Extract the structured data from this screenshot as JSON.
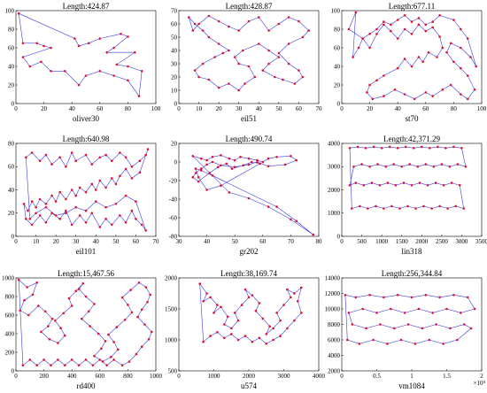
{
  "colors": {
    "tour": "#3a3ae0",
    "city": "#e01030",
    "axis": "#000000"
  },
  "chart_data": [
    {
      "type": "scatter",
      "name": "oliver30",
      "title": "Length:424.87",
      "xlim": [
        0,
        100
      ],
      "ylim": [
        0,
        100
      ],
      "xticks": [
        "0",
        "20",
        "40",
        "60",
        "80",
        "100"
      ],
      "yticks": [
        "0",
        "20",
        "40",
        "60",
        "80",
        "100"
      ],
      "x": [
        2,
        42,
        45,
        52,
        60,
        75,
        80,
        70,
        65,
        85,
        72,
        80,
        90,
        88,
        80,
        70,
        60,
        50,
        45,
        35,
        25,
        18,
        10,
        5,
        25,
        20,
        15,
        5
      ],
      "y": [
        97,
        70,
        62,
        65,
        70,
        75,
        72,
        60,
        55,
        55,
        42,
        40,
        35,
        8,
        25,
        30,
        35,
        30,
        20,
        35,
        35,
        45,
        40,
        50,
        60,
        62,
        65,
        65
      ],
      "n_points": 30
    },
    {
      "type": "scatter",
      "name": "eil51",
      "title": "Length:428.87",
      "xlim": [
        0,
        70
      ],
      "ylim": [
        0,
        70
      ],
      "xticks": [
        "0",
        "10",
        "20",
        "30",
        "40",
        "50",
        "60",
        "70"
      ],
      "yticks": [
        "0",
        "10",
        "20",
        "30",
        "40",
        "50",
        "60",
        "70"
      ],
      "x": [
        5,
        8,
        12,
        15,
        20,
        25,
        22,
        18,
        12,
        8,
        10,
        15,
        20,
        25,
        30,
        33,
        38,
        35,
        30,
        28,
        32,
        40,
        45,
        50,
        45,
        42,
        48,
        52,
        58,
        62,
        60,
        55,
        50,
        55,
        62,
        65,
        60,
        55,
        50,
        45,
        40,
        35,
        30,
        25,
        20,
        15,
        10,
        7
      ],
      "y": [
        65,
        60,
        55,
        50,
        45,
        40,
        38,
        35,
        30,
        25,
        20,
        18,
        12,
        15,
        10,
        15,
        20,
        28,
        30,
        35,
        40,
        45,
        40,
        35,
        30,
        25,
        20,
        18,
        15,
        20,
        25,
        30,
        38,
        45,
        50,
        55,
        62,
        65,
        60,
        55,
        65,
        62,
        55,
        58,
        62,
        66,
        60,
        55
      ],
      "n_points": 51
    },
    {
      "type": "scatter",
      "name": "st70",
      "title": "Length:677.11",
      "xlim": [
        0,
        100
      ],
      "ylim": [
        0,
        100
      ],
      "xticks": [
        "0",
        "20",
        "40",
        "60",
        "80",
        "100"
      ],
      "yticks": [
        "0",
        "20",
        "40",
        "60",
        "80",
        "100"
      ],
      "x": [
        10,
        5,
        15,
        20,
        25,
        30,
        35,
        40,
        45,
        50,
        55,
        60,
        65,
        70,
        72,
        68,
        62,
        58,
        55,
        50,
        45,
        40,
        30,
        25,
        20,
        18,
        22,
        30,
        38,
        45,
        52,
        60,
        65,
        72,
        78,
        85,
        90,
        95,
        90,
        85,
        80,
        75,
        78,
        85,
        92,
        96,
        90,
        85,
        80,
        70,
        65,
        60,
        55,
        50,
        45,
        40,
        35,
        30,
        25,
        20,
        15,
        12,
        8
      ],
      "y": [
        98,
        80,
        70,
        60,
        75,
        85,
        78,
        70,
        80,
        75,
        85,
        78,
        82,
        72,
        60,
        50,
        55,
        45,
        50,
        40,
        48,
        38,
        30,
        25,
        20,
        12,
        5,
        8,
        15,
        10,
        5,
        12,
        8,
        15,
        20,
        10,
        5,
        15,
        30,
        38,
        45,
        55,
        65,
        60,
        50,
        40,
        70,
        80,
        90,
        95,
        88,
        85,
        92,
        88,
        95,
        90,
        85,
        88,
        80,
        75,
        70,
        60,
        50
      ],
      "n_points": 70
    },
    {
      "type": "scatter",
      "name": "eil101",
      "title": "Length:640.98",
      "xlim": [
        0,
        70
      ],
      "ylim": [
        0,
        80
      ],
      "xticks": [
        "0",
        "10",
        "20",
        "30",
        "40",
        "50",
        "60",
        "70"
      ],
      "yticks": [
        "0",
        "20",
        "40",
        "60",
        "80"
      ],
      "x": [
        5,
        8,
        12,
        15,
        18,
        22,
        25,
        28,
        30,
        35,
        38,
        42,
        45,
        48,
        52,
        55,
        58,
        62,
        65,
        66,
        62,
        58,
        55,
        52,
        50,
        48,
        45,
        42,
        40,
        38,
        35,
        32,
        30,
        28,
        25,
        22,
        20,
        18,
        15,
        12,
        10,
        8,
        6,
        4,
        5,
        8,
        12,
        15,
        18,
        22,
        25,
        28,
        32,
        35,
        38,
        42,
        45,
        48,
        52,
        55,
        58,
        60,
        63,
        65,
        60,
        55,
        50,
        45,
        40,
        35,
        30,
        25,
        20,
        15,
        10,
        7
      ],
      "y": [
        68,
        72,
        65,
        70,
        62,
        68,
        60,
        72,
        65,
        70,
        62,
        68,
        70,
        65,
        72,
        68,
        60,
        65,
        70,
        75,
        55,
        50,
        58,
        52,
        45,
        50,
        42,
        48,
        40,
        45,
        38,
        42,
        35,
        40,
        32,
        38,
        30,
        35,
        28,
        32,
        25,
        30,
        22,
        28,
        15,
        10,
        18,
        12,
        20,
        15,
        22,
        10,
        18,
        12,
        20,
        8,
        15,
        10,
        18,
        12,
        22,
        15,
        10,
        5,
        30,
        35,
        28,
        25,
        30,
        22,
        25,
        20,
        18,
        25,
        20,
        15
      ],
      "n_points": 101
    },
    {
      "type": "scatter",
      "name": "gr202",
      "title": "Length:490.74",
      "xlim": [
        30,
        80
      ],
      "ylim": [
        -80,
        30
      ],
      "xticks": [
        "30",
        "40",
        "50",
        "60",
        "70",
        "80"
      ],
      "yticks": [
        "-80",
        "-60",
        "-40",
        "-20",
        "0",
        "20"
      ],
      "x": [
        35,
        38,
        40,
        42,
        45,
        48,
        50,
        52,
        55,
        58,
        60,
        62,
        65,
        70,
        72,
        68,
        62,
        58,
        55,
        50,
        45,
        42,
        40,
        38,
        36,
        35,
        37,
        41,
        44,
        47,
        49,
        53,
        56,
        59,
        45,
        40,
        37,
        36,
        38,
        42,
        65,
        72,
        78,
        70,
        62,
        55,
        48
      ],
      "y": [
        15,
        12,
        10,
        14,
        16,
        12,
        10,
        14,
        12,
        10,
        8,
        12,
        14,
        15,
        10,
        5,
        3,
        8,
        5,
        2,
        4,
        8,
        5,
        0,
        -5,
        -10,
        -15,
        -5,
        2,
        6,
        0,
        4,
        8,
        6,
        -20,
        -25,
        -10,
        0,
        -2,
        -8,
        -45,
        -62,
        -78,
        -60,
        -45,
        -35,
        -28
      ],
      "n_points": 202
    },
    {
      "type": "scatter",
      "name": "lin318",
      "title": "Length:42,371.29",
      "xlim": [
        0,
        3500
      ],
      "ylim": [
        0,
        4000
      ],
      "xticks": [
        "0",
        "500",
        "1000",
        "1500",
        "2000",
        "2500",
        "3000",
        "3500"
      ],
      "yticks": [
        "0",
        "1000",
        "2000",
        "3000",
        "4000"
      ],
      "x": [
        200,
        400,
        600,
        800,
        1000,
        1200,
        1400,
        1600,
        1800,
        2000,
        2200,
        2400,
        2600,
        2800,
        3000,
        3100,
        2900,
        2700,
        2500,
        2300,
        2100,
        1900,
        1700,
        1500,
        1300,
        1100,
        900,
        700,
        500,
        300,
        200,
        350,
        550,
        750,
        950,
        1150,
        1350,
        1550,
        1750,
        1950,
        2150,
        2350,
        2550,
        2750,
        2950,
        3050,
        2850,
        2650,
        2450,
        2250,
        2050,
        1850,
        1650,
        1450,
        1250,
        1050,
        850,
        650,
        450,
        250
      ],
      "y": [
        3800,
        3850,
        3800,
        3850,
        3800,
        3850,
        3800,
        3850,
        3800,
        3850,
        3800,
        3850,
        3800,
        3850,
        3800,
        3000,
        3100,
        3000,
        3100,
        3000,
        3100,
        3000,
        3100,
        3000,
        3100,
        3000,
        3100,
        3000,
        3100,
        3000,
        2200,
        2300,
        2200,
        2300,
        2200,
        2300,
        2200,
        2300,
        2200,
        2300,
        2200,
        2300,
        2200,
        2300,
        2200,
        1200,
        1300,
        1200,
        1300,
        1200,
        1300,
        1200,
        1300,
        1200,
        1300,
        1200,
        1300,
        1200,
        1300,
        1200
      ],
      "n_points": 318
    },
    {
      "type": "scatter",
      "name": "rd400",
      "title": "Length:15,467.56",
      "xlim": [
        0,
        1000
      ],
      "ylim": [
        0,
        1000
      ],
      "xticks": [
        "0",
        "200",
        "400",
        "600",
        "800",
        "1000"
      ],
      "yticks": [
        "0",
        "200",
        "400",
        "600",
        "800",
        "1000"
      ],
      "x": [
        20,
        80,
        150,
        120,
        60,
        30,
        90,
        160,
        210,
        260,
        230,
        180,
        240,
        300,
        350,
        320,
        280,
        340,
        400,
        380,
        430,
        480,
        450,
        500,
        560,
        520,
        470,
        530,
        590,
        640,
        610,
        560,
        620,
        680,
        730,
        700,
        660,
        720,
        780,
        830,
        800,
        760,
        820,
        880,
        930,
        960,
        940,
        900,
        870,
        920,
        970,
        950,
        900,
        860,
        810,
        760,
        700,
        650,
        600,
        550,
        500,
        450,
        400,
        350,
        300,
        250,
        200,
        150,
        100,
        50
      ],
      "y": [
        980,
        900,
        950,
        820,
        760,
        650,
        600,
        700,
        640,
        560,
        480,
        420,
        340,
        300,
        380,
        460,
        540,
        620,
        700,
        780,
        860,
        940,
        880,
        800,
        720,
        640,
        560,
        480,
        400,
        320,
        240,
        160,
        100,
        150,
        230,
        310,
        390,
        470,
        550,
        630,
        710,
        790,
        870,
        950,
        900,
        820,
        740,
        660,
        580,
        500,
        420,
        340,
        260,
        180,
        100,
        60,
        120,
        60,
        120,
        60,
        120,
        60,
        120,
        60,
        120,
        60,
        120,
        60,
        120,
        60
      ],
      "n_points": 400
    },
    {
      "type": "scatter",
      "name": "u574",
      "title": "Length:38,169.74",
      "xlim": [
        0,
        4000
      ],
      "ylim": [
        0,
        2400
      ],
      "xticks": [
        "0",
        "1000",
        "2000",
        "3000",
        "4000"
      ],
      "yticks": [
        "500",
        "1000",
        "1500",
        "2000"
      ],
      "x": [
        600,
        800,
        700,
        900,
        1100,
        1000,
        1200,
        1400,
        1300,
        1500,
        1700,
        1600,
        1800,
        2000,
        1900,
        2100,
        2300,
        2200,
        2400,
        2600,
        2500,
        2700,
        2900,
        2800,
        3000,
        3200,
        3100,
        3300,
        3500,
        3400,
        3500,
        3300,
        3100,
        2900,
        2700,
        2500,
        2300,
        2100,
        1900,
        1700,
        1500,
        1300,
        1100,
        900,
        700
      ],
      "y": [
        2250,
        2000,
        1800,
        1900,
        1700,
        1500,
        1650,
        1400,
        1200,
        1100,
        1300,
        1500,
        1700,
        1900,
        2100,
        1950,
        1750,
        1550,
        1350,
        1150,
        950,
        1100,
        1300,
        1500,
        1700,
        1900,
        2100,
        2000,
        2150,
        1800,
        1500,
        1300,
        1100,
        900,
        800,
        700,
        850,
        750,
        900,
        800,
        950,
        850,
        1000,
        900,
        750
      ],
      "n_points": 574
    },
    {
      "type": "scatter",
      "name": "vm1084",
      "title": "Length:256,344.84",
      "xlim": [
        0,
        20000
      ],
      "ylim": [
        2000,
        14000
      ],
      "xticks": [
        "0",
        "0.5",
        "1",
        "1.5",
        "2"
      ],
      "yticks": [
        "2000",
        "4000",
        "6000",
        "8000",
        "10000",
        "12000",
        "14000"
      ],
      "x_exponent": "×10⁴",
      "x": [
        500,
        2000,
        4000,
        6000,
        8000,
        10000,
        12000,
        14000,
        16000,
        18000,
        19000,
        17000,
        15000,
        13000,
        11000,
        9000,
        7000,
        5000,
        3000,
        1000,
        1500,
        3500,
        5500,
        7500,
        9500,
        11500,
        13500,
        15500,
        17500,
        18500,
        16500,
        14500,
        12500,
        10500,
        8500,
        6500,
        4500,
        2500,
        800
      ],
      "y": [
        11800,
        11500,
        11800,
        11500,
        11800,
        11500,
        11800,
        11500,
        11800,
        11500,
        10000,
        9500,
        10000,
        9500,
        10000,
        9500,
        10000,
        9500,
        10000,
        9500,
        8000,
        7500,
        8000,
        7500,
        8000,
        7500,
        8000,
        7500,
        8000,
        7500,
        6000,
        5500,
        6000,
        5500,
        6000,
        5500,
        6000,
        5500,
        6000
      ],
      "n_points": 1084
    }
  ]
}
